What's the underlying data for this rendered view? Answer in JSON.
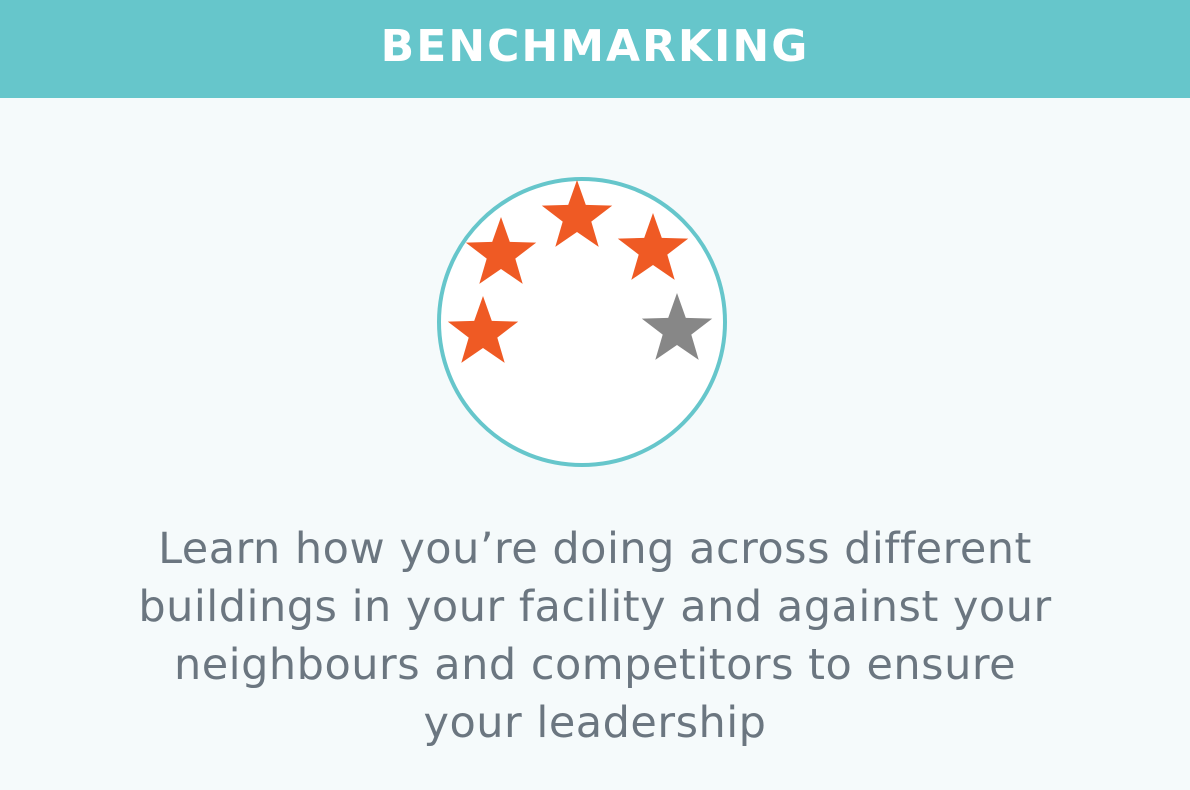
{
  "header": {
    "title": "BENCHMARKING"
  },
  "rating_emblem": {
    "stars_filled": 4,
    "stars_total": 5
  },
  "description": {
    "lines": [
      "Learn how you’re doing across different",
      "buildings in your facility and against your",
      "neighbours and competitors to ensure",
      "your leadership"
    ]
  },
  "colors": {
    "header_background": "#66c6cb",
    "page_background": "#f5fafb",
    "circle_border": "#66c6cb",
    "star_filled": "#ef5a24",
    "star_empty": "#878787",
    "body_text": "#6b7680"
  }
}
